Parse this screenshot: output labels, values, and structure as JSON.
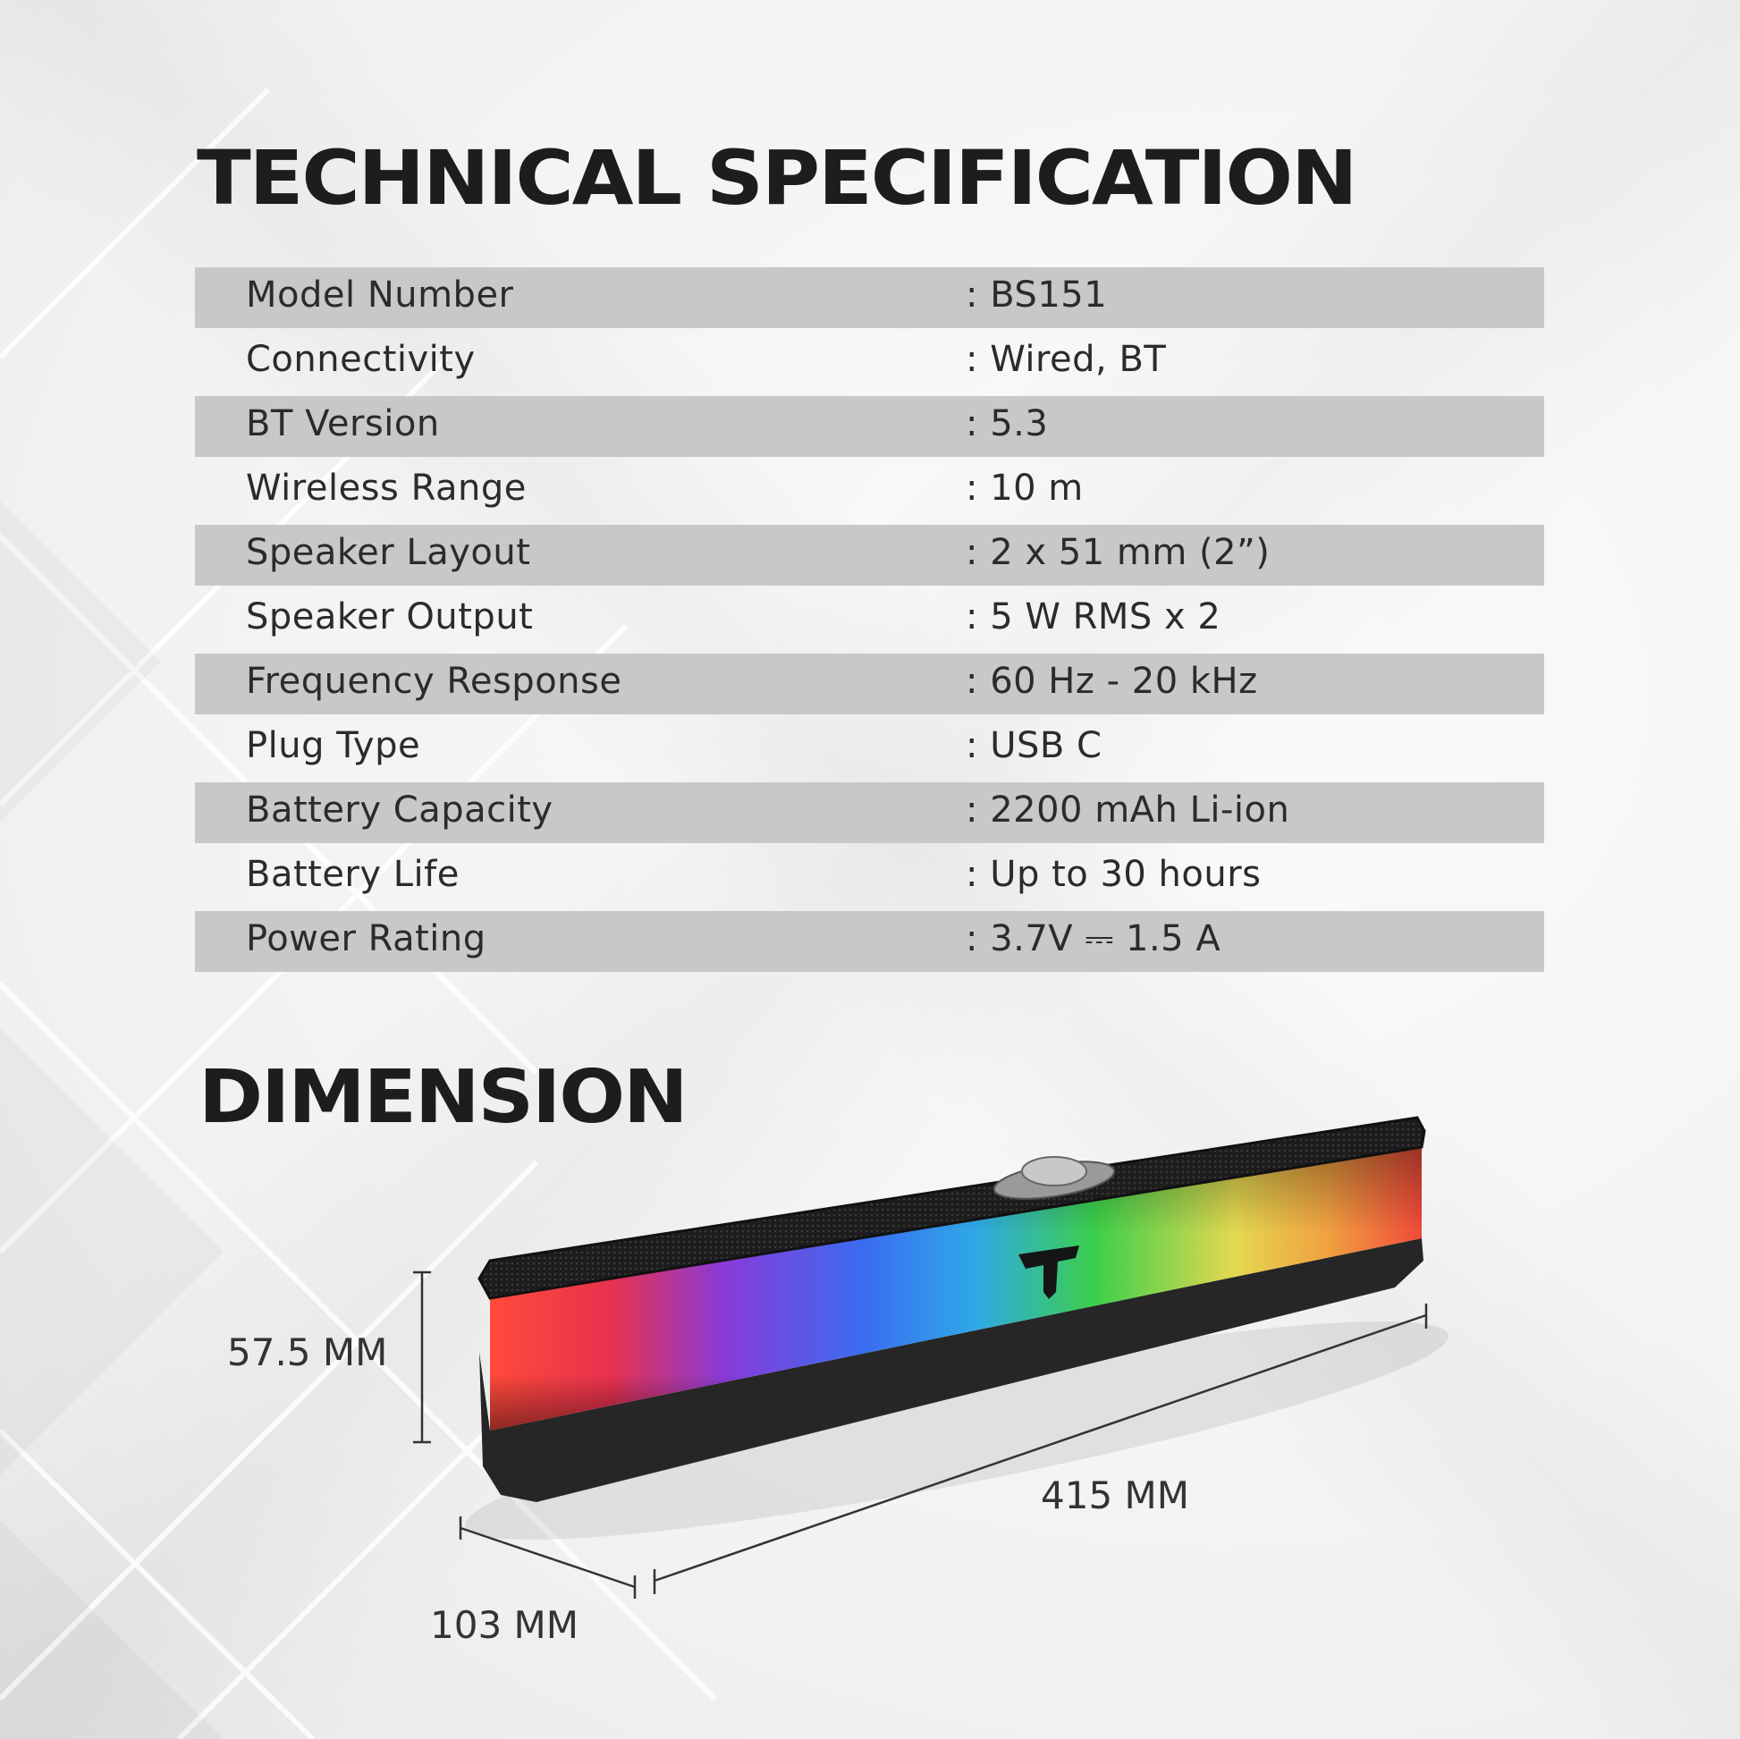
{
  "title": "TECHNICAL SPECIFICATION",
  "specs": [
    {
      "label": "Model Number",
      "value": ": BS151"
    },
    {
      "label": "Connectivity",
      "value": ": Wired, BT"
    },
    {
      "label": "BT Version",
      "value": ": 5.3"
    },
    {
      "label": "Wireless Range",
      "value": ": 10 m"
    },
    {
      "label": "Speaker Layout",
      "value": ": 2 x 51 mm (2”)"
    },
    {
      "label": "Speaker Output",
      "value": ": 5 W RMS x 2"
    },
    {
      "label": "Frequency Response",
      "value": ": 60 Hz - 20 kHz"
    },
    {
      "label": "Plug Type",
      "value": ": USB C"
    },
    {
      "label": "Battery Capacity",
      "value": ": 2200 mAh Li-ion"
    },
    {
      "label": "Battery Life",
      "value": ": Up to 30 hours"
    },
    {
      "label": "Power Rating",
      "value": ": 3.7V ⎓ 1.5 A"
    }
  ],
  "dimension": {
    "title": "DIMENSION",
    "height": "57.5 MM",
    "length": "415 MM",
    "depth": "103 MM"
  },
  "colors": {
    "row_shade": "#c8c8c8",
    "heading": "#1d1d1d"
  }
}
